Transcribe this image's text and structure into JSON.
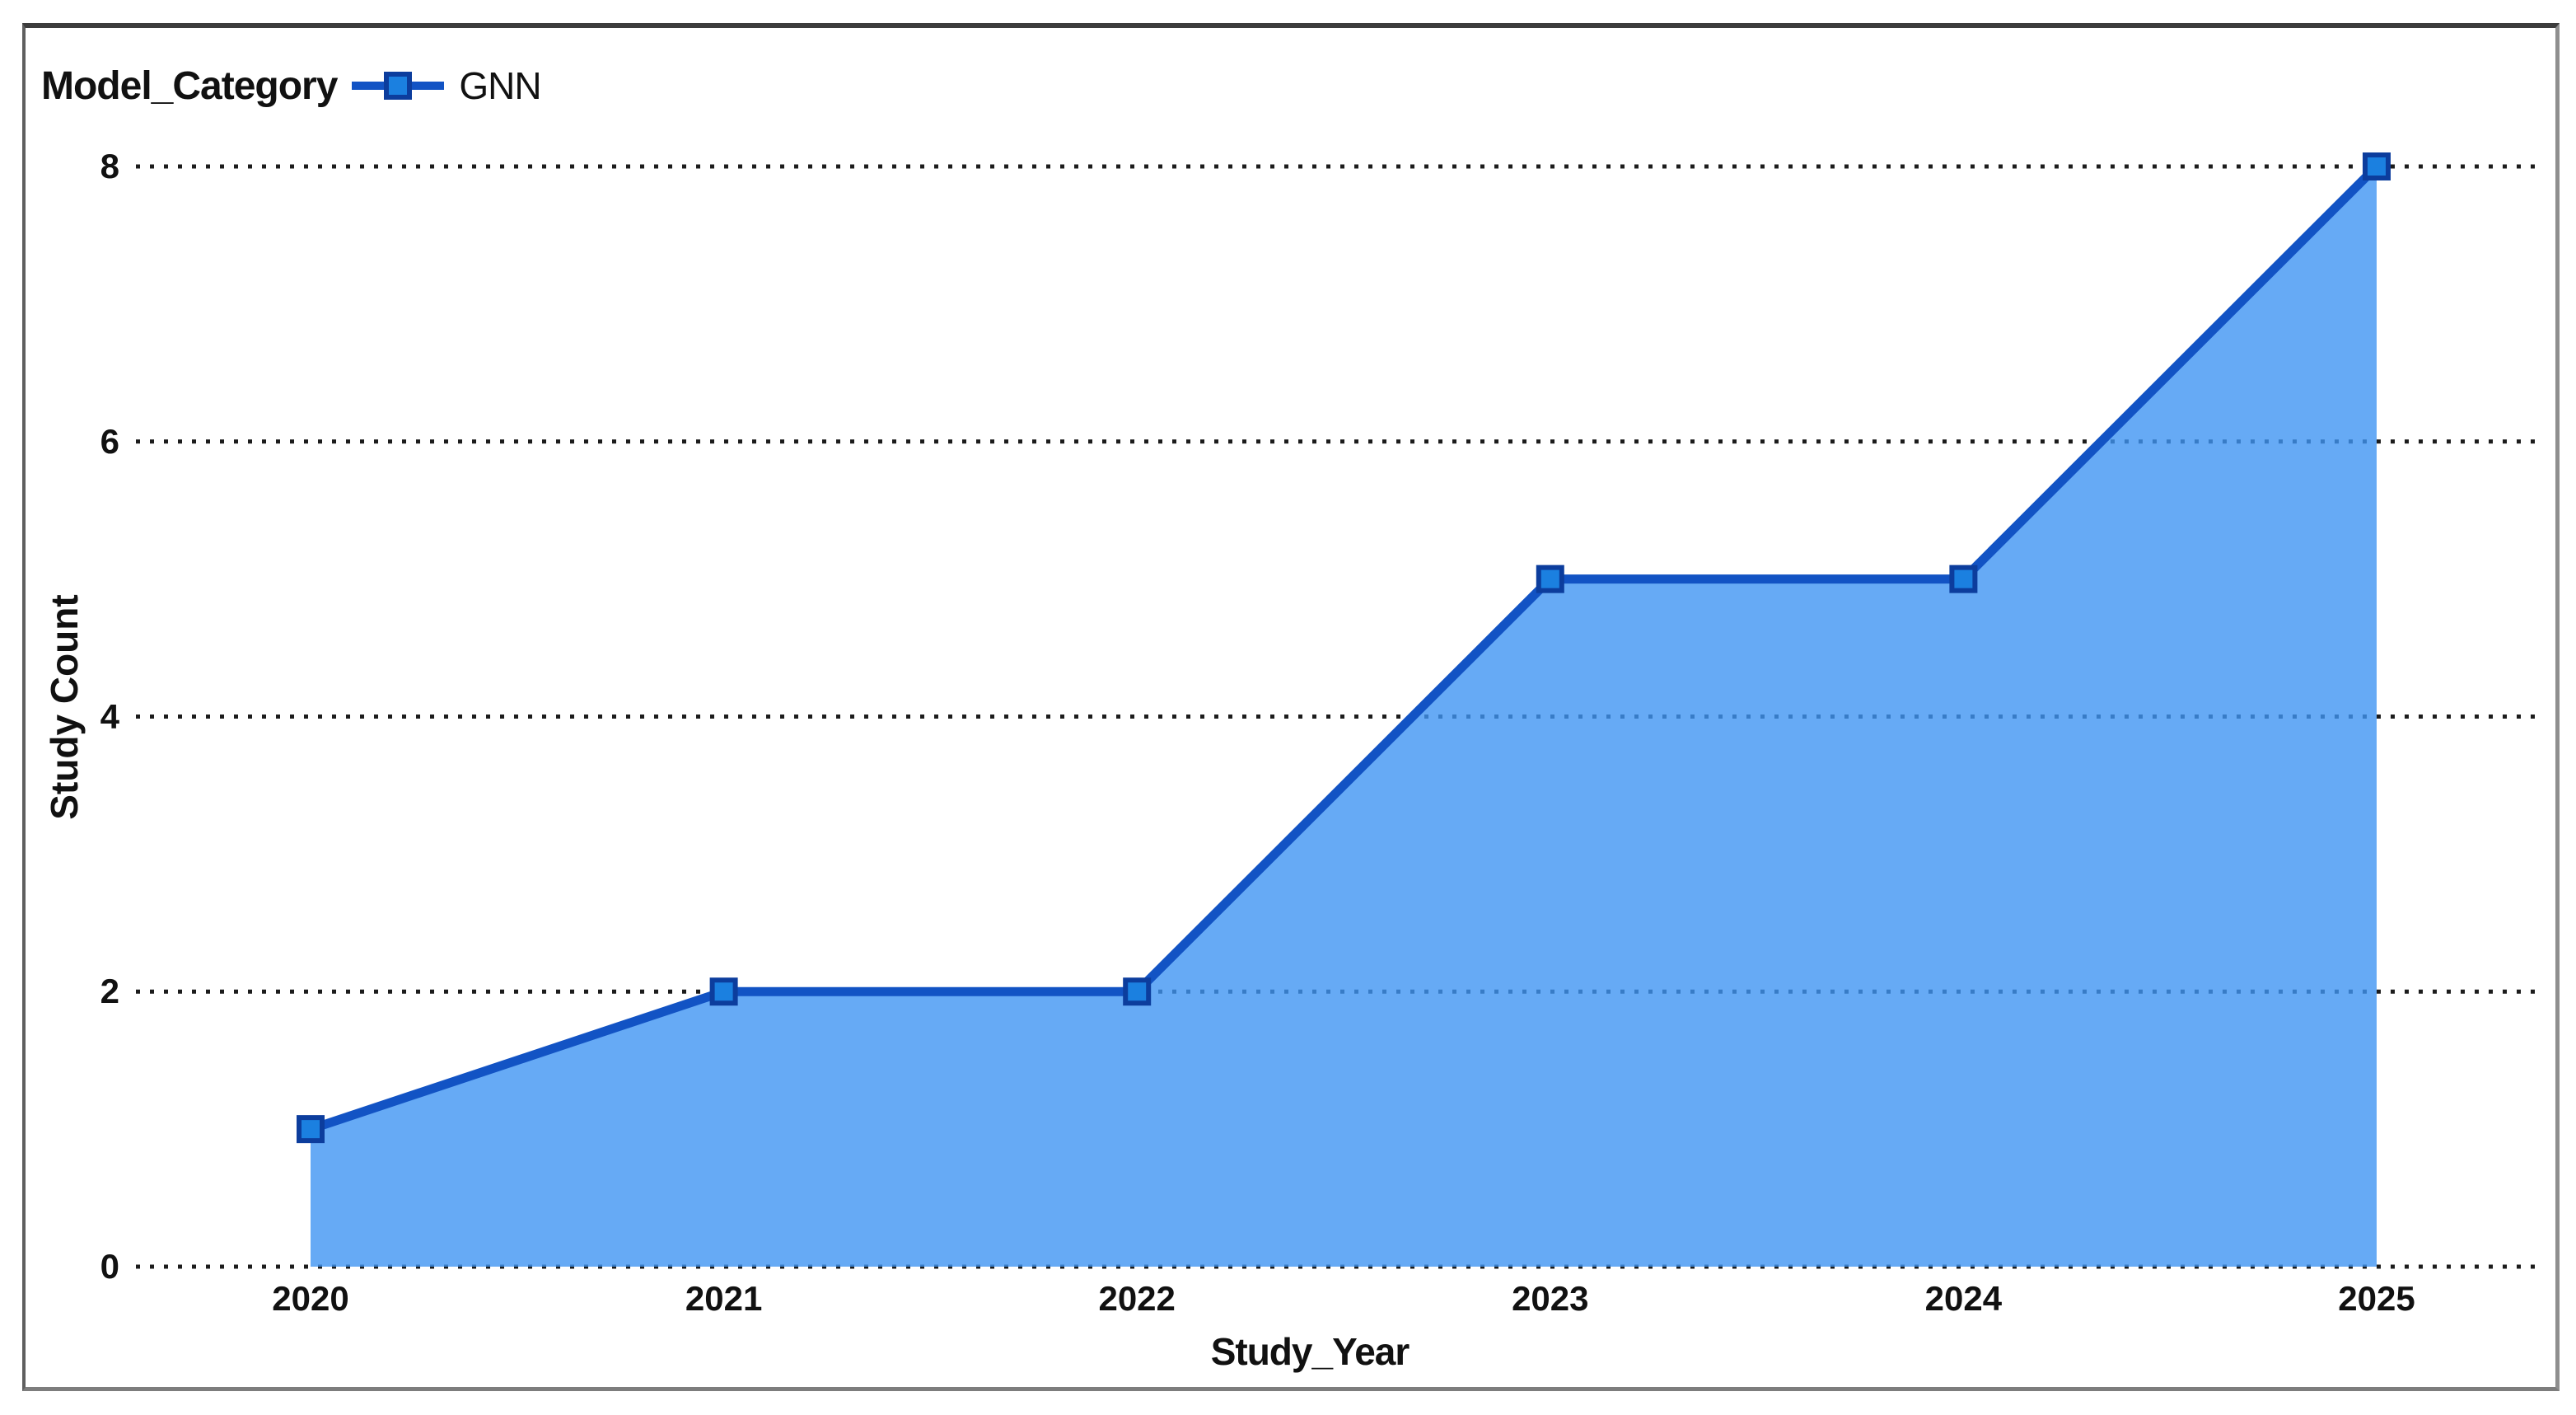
{
  "legend": {
    "title": "Model_Category",
    "marker_icon": "line-with-square-marker-icon"
  },
  "chart_data": {
    "type": "area",
    "title": "",
    "x": [
      "2020",
      "2021",
      "2022",
      "2023",
      "2024",
      "2025"
    ],
    "series": [
      {
        "name": "GNN",
        "values": [
          1,
          2,
          2,
          5,
          5,
          8
        ]
      }
    ],
    "xlabel": "Study_Year",
    "ylabel": "Study Count",
    "yticks": [
      0,
      2,
      4,
      6,
      8
    ],
    "ylim": [
      0,
      8
    ],
    "grid": "dotted-horizontal",
    "legend_position": "top-left",
    "marker_shape": "square",
    "colors": {
      "line": "#1253c4",
      "fill": "#4095f3",
      "fill_opacity": 0.8,
      "marker_fill": "#1b80e0",
      "marker_border": "#0c3d9d",
      "grid": "#1c1c1c",
      "text": "#111111",
      "frame": "#3c3c3c"
    }
  }
}
